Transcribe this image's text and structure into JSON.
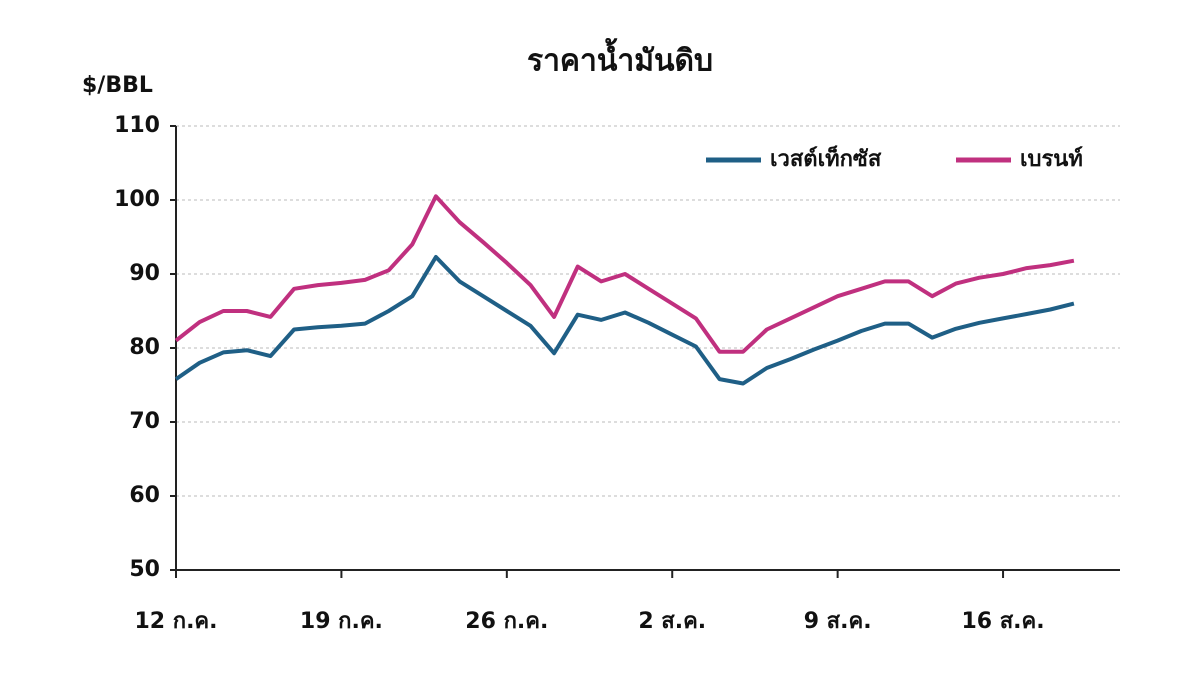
{
  "chart_data": {
    "type": "line",
    "title": "ราคาน้ำมันดิบ",
    "y_label": "$/BBL",
    "categories": [
      "12 ก.ค.",
      null,
      null,
      null,
      null,
      null,
      null,
      "19 ก.ค.",
      null,
      null,
      null,
      null,
      null,
      null,
      "26 ก.ค.",
      null,
      null,
      null,
      null,
      null,
      null,
      "2 ส.ค.",
      null,
      null,
      null,
      null,
      null,
      null,
      "9 ส.ค.",
      null,
      null,
      null,
      null,
      null,
      null,
      "16 ส.ค.",
      null,
      null,
      null
    ],
    "series": [
      {
        "name": "เวสต์เท็กซัส",
        "color": "#1f5f86",
        "values": [
          75.8,
          78,
          79.4,
          79.7,
          78.9,
          82.5,
          82.8,
          83,
          83.3,
          85,
          87,
          92.3,
          89,
          87,
          85,
          83,
          79.3,
          84.5,
          83.8,
          84.8,
          83.4,
          81.8,
          80.2,
          75.8,
          75.2,
          77.3,
          78.5,
          79.8,
          81,
          82.3,
          83.3,
          83.3,
          81.4,
          82.6,
          83.4,
          84,
          84.6,
          85.2,
          86
        ]
      },
      {
        "name": "เบรนท์",
        "color": "#c0307f",
        "values": [
          81,
          83.5,
          85,
          85,
          84.2,
          88,
          88.5,
          88.8,
          89.2,
          90.5,
          94,
          100.5,
          97,
          94.3,
          91.5,
          88.5,
          84.2,
          91,
          89,
          90,
          88,
          86,
          84,
          79.5,
          79.5,
          82.5,
          84,
          85.5,
          87,
          88,
          89,
          89,
          87,
          88.7,
          89.5,
          90,
          90.8,
          91.2,
          91.8
        ]
      }
    ],
    "ylim": [
      50,
      110
    ],
    "yticks": [
      50,
      60,
      70,
      80,
      90,
      100,
      110
    ],
    "grid": true,
    "legend": "top-right"
  }
}
